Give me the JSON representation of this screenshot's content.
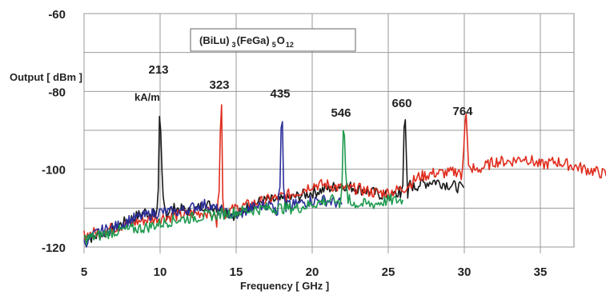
{
  "chart_data": {
    "type": "line",
    "title": "(BiLu)3(FeGa)5O12",
    "title_parts": {
      "a": "(BiLu)",
      "s1": "3",
      "b": "(FeGa)",
      "s2": "5",
      "c": "O",
      "s3": "12"
    },
    "xlabel": "Frequency [ GHz ]",
    "ylabel": "Output [ dBm ]",
    "xlim": [
      5,
      35
    ],
    "ylim": [
      -120,
      -60
    ],
    "x_ticks": [
      5,
      10,
      15,
      20,
      25,
      30,
      35
    ],
    "y_ticks": [
      -60,
      -80,
      -100,
      -120
    ],
    "grid": true,
    "field_unit": "kA/m",
    "peak_labels": [
      {
        "text": "213",
        "x": 10
      },
      {
        "text": "323",
        "x": 14
      },
      {
        "text": "435",
        "x": 18
      },
      {
        "text": "546",
        "x": 22
      },
      {
        "text": "660",
        "x": 26
      },
      {
        "text": "764",
        "x": 30
      }
    ],
    "series": [
      {
        "color": "#1a1a1a",
        "peaks": [
          {
            "x": 10.0,
            "y": -84
          },
          {
            "x": 26.1,
            "y": -87
          }
        ],
        "baseline": [
          [
            5,
            -118
          ],
          [
            6,
            -117
          ],
          [
            7,
            -115
          ],
          [
            8,
            -113
          ],
          [
            9,
            -111
          ],
          [
            10,
            -112
          ],
          [
            11,
            -110
          ],
          [
            12,
            -111
          ],
          [
            13,
            -109
          ],
          [
            14,
            -110
          ],
          [
            15,
            -112
          ],
          [
            16,
            -109
          ],
          [
            17,
            -108
          ],
          [
            18,
            -108
          ],
          [
            19,
            -107
          ],
          [
            20,
            -106
          ],
          [
            21,
            -105
          ],
          [
            22,
            -104
          ],
          [
            23,
            -105
          ],
          [
            24,
            -106
          ],
          [
            25,
            -107
          ],
          [
            26,
            -106
          ],
          [
            27,
            -104
          ],
          [
            28,
            -103
          ],
          [
            29,
            -104
          ],
          [
            30,
            -105
          ]
        ]
      },
      {
        "color": "#e02d1e",
        "peaks": [
          {
            "x": 14.0,
            "y": -83
          },
          {
            "x": 30.1,
            "y": -87
          }
        ],
        "baseline": [
          [
            5,
            -117
          ],
          [
            7,
            -115
          ],
          [
            9,
            -113
          ],
          [
            11,
            -112
          ],
          [
            13,
            -111
          ],
          [
            14,
            -112
          ],
          [
            15,
            -110
          ],
          [
            16,
            -109
          ],
          [
            17,
            -108
          ],
          [
            18,
            -107
          ],
          [
            19,
            -106
          ],
          [
            20,
            -104
          ],
          [
            21,
            -104
          ],
          [
            22,
            -105
          ],
          [
            23,
            -105
          ],
          [
            24,
            -106
          ],
          [
            25,
            -106
          ],
          [
            26,
            -105
          ],
          [
            27,
            -102
          ],
          [
            28,
            -101
          ],
          [
            29,
            -101
          ],
          [
            30,
            -100
          ],
          [
            31,
            -100
          ],
          [
            32,
            -98
          ],
          [
            33,
            -98
          ],
          [
            34,
            -97
          ],
          [
            35,
            -99
          ],
          [
            36,
            -98
          ],
          [
            37,
            -99
          ],
          [
            38,
            -100
          ],
          [
            39,
            -101
          ],
          [
            40,
            -102
          ]
        ]
      },
      {
        "color": "#2b2f9a",
        "peaks": [
          {
            "x": 18.0,
            "y": -82
          }
        ],
        "baseline": [
          [
            5,
            -119
          ],
          [
            6,
            -116
          ],
          [
            7,
            -115
          ],
          [
            8,
            -113
          ],
          [
            9,
            -112
          ],
          [
            10,
            -111
          ],
          [
            11,
            -111
          ],
          [
            12,
            -110
          ],
          [
            13,
            -109
          ],
          [
            14,
            -111
          ],
          [
            15,
            -112
          ],
          [
            16,
            -110
          ],
          [
            17,
            -109
          ],
          [
            18,
            -110
          ],
          [
            19,
            -109
          ],
          [
            20,
            -108
          ],
          [
            21,
            -108
          ],
          [
            22,
            -109
          ]
        ]
      },
      {
        "color": "#1e9a4e",
        "peaks": [
          {
            "x": 22.1,
            "y": -87
          }
        ],
        "baseline": [
          [
            5,
            -118
          ],
          [
            7,
            -116
          ],
          [
            9,
            -115
          ],
          [
            11,
            -113
          ],
          [
            13,
            -112
          ],
          [
            15,
            -111
          ],
          [
            17,
            -110
          ],
          [
            19,
            -110
          ],
          [
            20,
            -109
          ],
          [
            21,
            -108
          ],
          [
            22,
            -108
          ],
          [
            23,
            -109
          ],
          [
            24,
            -109
          ],
          [
            25,
            -108
          ],
          [
            26,
            -108
          ]
        ]
      }
    ]
  }
}
